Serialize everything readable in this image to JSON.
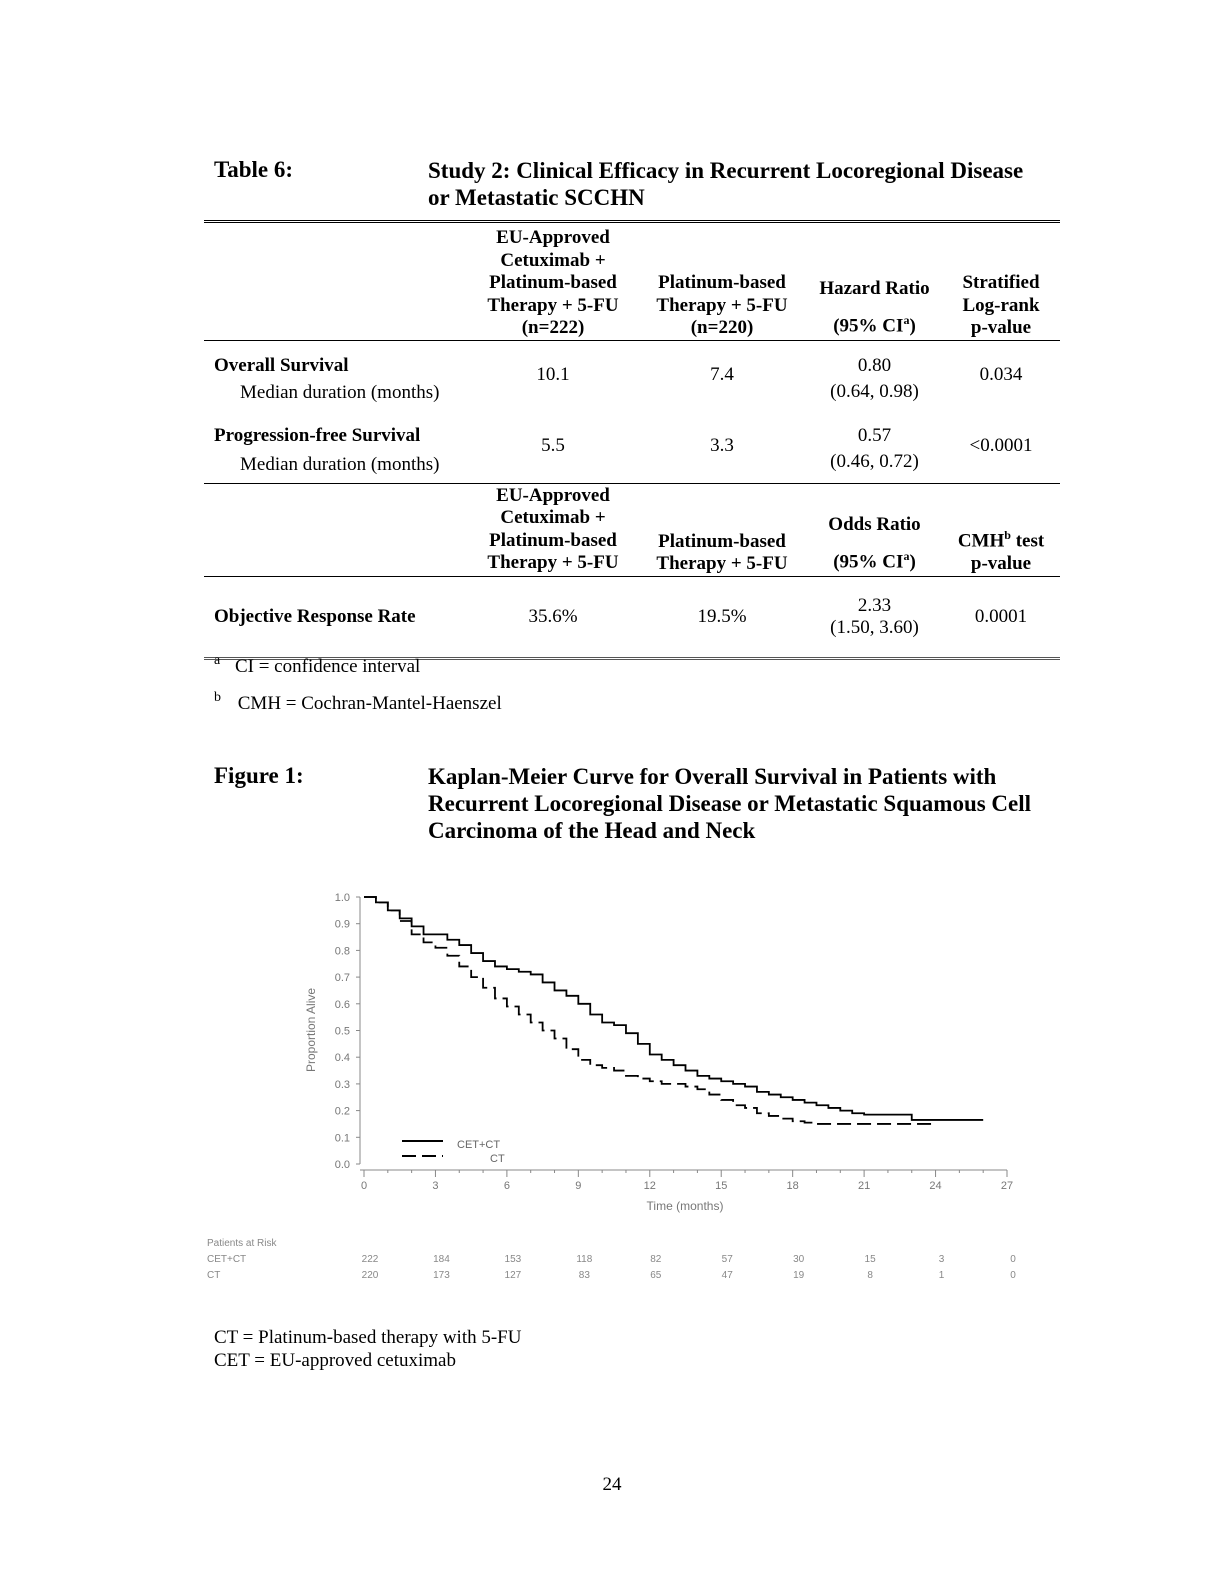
{
  "table6": {
    "label": "Table 6:",
    "title_line1": "Study 2: Clinical Efficacy in Recurrent Locoregional Disease",
    "title_line2": "or Metastatic SCCHN",
    "header1": {
      "col2": [
        "EU-Approved",
        "Cetuximab +",
        "Platinum-based",
        "Therapy + 5-FU",
        "(n=222)"
      ],
      "col3": [
        "Platinum-based",
        "Therapy + 5-FU",
        "(n=220)"
      ],
      "col4_line1": "Hazard Ratio",
      "col4_line2": "(95% CI",
      "col4_sup": "a",
      "col4_close": ")",
      "col5": [
        "Stratified",
        "Log-rank",
        "p-value"
      ]
    },
    "rows": [
      {
        "label": "Overall Survival",
        "sub": "Median duration (months)",
        "cet": "10.1",
        "ct": "7.4",
        "hr": "0.80",
        "ci": "(0.64, 0.98)",
        "p": "0.034"
      },
      {
        "label": "Progression-free Survival",
        "sub": "Median duration (months)",
        "cet": "5.5",
        "ct": "3.3",
        "hr": "0.57",
        "ci": "(0.46, 0.72)",
        "p": "<0.0001"
      }
    ],
    "header2": {
      "col2": [
        "EU-Approved",
        "Cetuximab +",
        "Platinum-based",
        "Therapy + 5-FU"
      ],
      "col3": [
        "Platinum-based",
        "Therapy + 5-FU"
      ],
      "col4_line1": "Odds Ratio",
      "col4_line2": "(95% CI",
      "col4_sup": "a",
      "col4_close": ")",
      "col5_line1a": "CMH",
      "col5_sup": "b",
      "col5_line1b": " test",
      "col5_line2": "p-value"
    },
    "orr": {
      "label": "Objective Response Rate",
      "cet": "35.6%",
      "ct": "19.5%",
      "or": "2.33",
      "ci": "(1.50, 3.60)",
      "p": "0.0001"
    },
    "footnotes": [
      {
        "mark": "a",
        "text": "CI = confidence interval"
      },
      {
        "mark": "b",
        "text": "CMH = Cochran-Mantel-Haenszel"
      }
    ]
  },
  "figure1": {
    "label": "Figure 1:",
    "title_lines": [
      "Kaplan-Meier Curve for Overall Survival in Patients with",
      "Recurrent Locoregional Disease or Metastatic Squamous Cell",
      "Carcinoma of the Head and Neck"
    ]
  },
  "chart_data": {
    "type": "line",
    "xlabel": "Time (months)",
    "ylabel": "Proportion Alive",
    "xlim": [
      0,
      27
    ],
    "ylim": [
      0,
      1.0
    ],
    "x_ticks": [
      0,
      3,
      6,
      9,
      12,
      15,
      18,
      21,
      24,
      27
    ],
    "y_ticks": [
      "0.0",
      "0.1",
      "0.2",
      "0.3",
      "0.4",
      "0.5",
      "0.6",
      "0.7",
      "0.8",
      "0.9",
      "1.0"
    ],
    "legend_placement": "bottom-left",
    "series": [
      {
        "name": "CET+CT",
        "style": "solid",
        "x": [
          0,
          0.5,
          1,
          1.5,
          2,
          2.5,
          3,
          3.5,
          4,
          4.5,
          5,
          5.5,
          6,
          6.5,
          7,
          7.5,
          8,
          8.5,
          9,
          9.5,
          10,
          10.5,
          11,
          11.5,
          12,
          12.5,
          13,
          13.5,
          14,
          14.5,
          15,
          15.5,
          16,
          16.5,
          17,
          17.5,
          18,
          18.5,
          19,
          19.5,
          20,
          20.5,
          21,
          22,
          23,
          24,
          25,
          26
        ],
        "y": [
          1.0,
          0.98,
          0.95,
          0.92,
          0.89,
          0.86,
          0.86,
          0.84,
          0.82,
          0.79,
          0.76,
          0.74,
          0.73,
          0.72,
          0.71,
          0.68,
          0.65,
          0.63,
          0.6,
          0.56,
          0.53,
          0.52,
          0.49,
          0.45,
          0.41,
          0.39,
          0.37,
          0.35,
          0.33,
          0.32,
          0.31,
          0.3,
          0.29,
          0.27,
          0.26,
          0.25,
          0.24,
          0.23,
          0.22,
          0.21,
          0.2,
          0.19,
          0.185,
          0.185,
          0.165,
          0.165,
          0.165,
          0.165
        ]
      },
      {
        "name": "CT",
        "style": "dashed",
        "x": [
          0,
          0.5,
          1,
          1.5,
          2,
          2.5,
          3,
          3.5,
          4,
          4.5,
          5,
          5.5,
          6,
          6.5,
          7,
          7.5,
          8,
          8.5,
          9,
          9.5,
          10,
          10.5,
          11,
          11.5,
          12,
          12.5,
          13,
          13.5,
          14,
          14.5,
          15,
          15.5,
          16,
          16.5,
          17,
          17.5,
          18,
          18.5,
          19,
          20,
          21,
          22,
          23,
          24
        ],
        "y": [
          1.0,
          0.98,
          0.95,
          0.91,
          0.86,
          0.83,
          0.81,
          0.78,
          0.74,
          0.7,
          0.66,
          0.62,
          0.59,
          0.56,
          0.53,
          0.5,
          0.47,
          0.43,
          0.39,
          0.37,
          0.36,
          0.35,
          0.33,
          0.32,
          0.31,
          0.3,
          0.3,
          0.29,
          0.28,
          0.26,
          0.24,
          0.22,
          0.21,
          0.19,
          0.18,
          0.17,
          0.16,
          0.155,
          0.15,
          0.15,
          0.15,
          0.15,
          0.15,
          0.15
        ]
      }
    ],
    "at_risk": {
      "title": "Patients at Risk",
      "rows": [
        {
          "name": "CET+CT",
          "values": [
            "222",
            "184",
            "153",
            "118",
            "82",
            "57",
            "30",
            "15",
            "3",
            "0"
          ]
        },
        {
          "name": "CT",
          "values": [
            "220",
            "173",
            "127",
            "83",
            "65",
            "47",
            "19",
            "8",
            "1",
            "0"
          ]
        }
      ]
    }
  },
  "notes": [
    "CT = Platinum-based therapy with 5-FU",
    "CET = EU-approved cetuximab"
  ],
  "page_number": "24"
}
